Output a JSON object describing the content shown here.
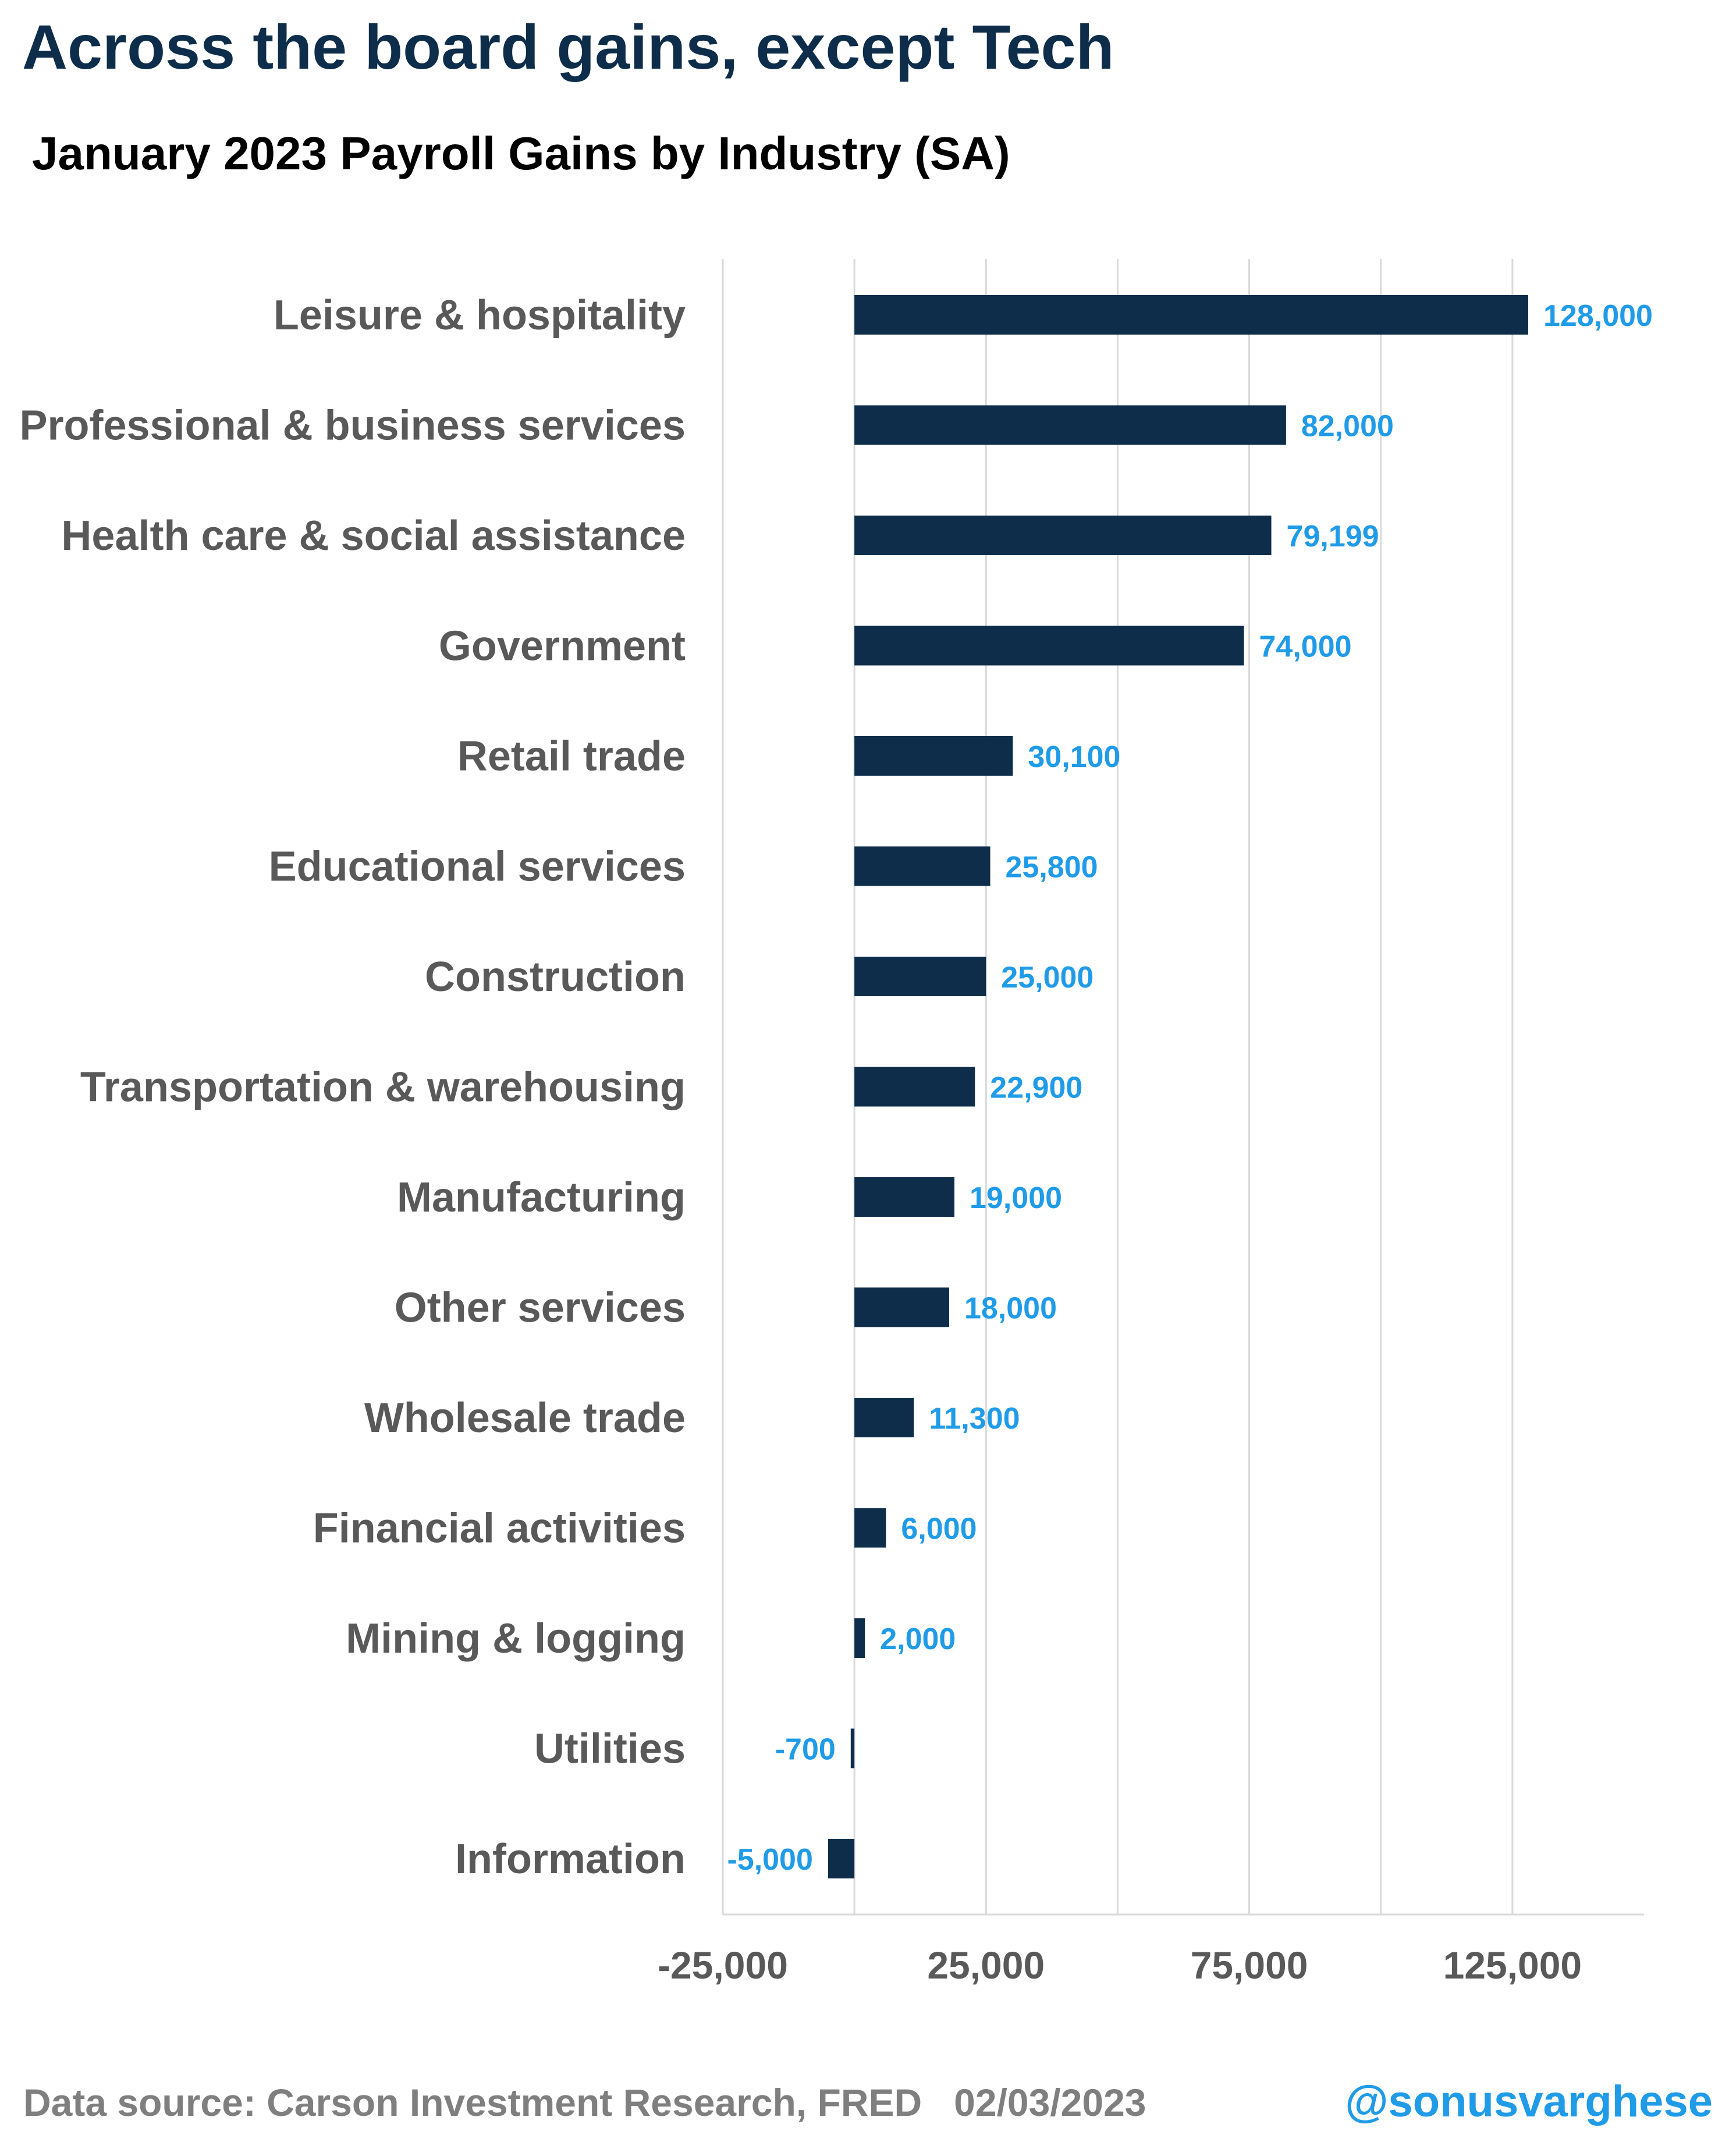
{
  "headline": "Across the board gains, except Tech",
  "footer": {
    "source": "Data source: Carson Investment Research, FRED   02/03/2023",
    "handle": "@sonusvarghese"
  },
  "colors": {
    "bar": "#0e2d4a",
    "data_label": "#1f9be8",
    "category_label": "#595959",
    "gridline": "#d9d9d9",
    "headline": "#0e2d4a"
  },
  "chart_data": {
    "type": "bar",
    "orientation": "horizontal",
    "title": "January 2023 Payroll Gains by Industry (SA)",
    "xlabel": "",
    "ylabel": "",
    "categories": [
      "Leisure & hospitality",
      "Professional & business services",
      "Health care & social assistance",
      "Government",
      "Retail trade",
      "Educational services",
      "Construction",
      "Transportation & warehousing",
      "Manufacturing",
      "Other services",
      "Wholesale trade",
      "Financial activities",
      "Mining & logging",
      "Utilities",
      "Information"
    ],
    "values": [
      128000,
      82000,
      79199,
      74000,
      30100,
      25800,
      25000,
      22900,
      19000,
      18000,
      11300,
      6000,
      2000,
      -700,
      -5000
    ],
    "value_labels": [
      "128,000",
      "82,000",
      "79,199",
      "74,000",
      "30,100",
      "25,800",
      "25,000",
      "22,900",
      "19,000",
      "18,000",
      "11,300",
      "6,000",
      "2,000",
      "-700",
      "-5,000"
    ],
    "xlim": [
      -25000,
      150000
    ],
    "x_ticks": [
      -25000,
      25000,
      75000,
      125000
    ],
    "x_tick_labels": [
      "-25,000",
      "25,000",
      "75,000",
      "125,000"
    ],
    "gridlines": [
      0,
      50000,
      100000
    ],
    "grid": true,
    "legend": "none"
  }
}
